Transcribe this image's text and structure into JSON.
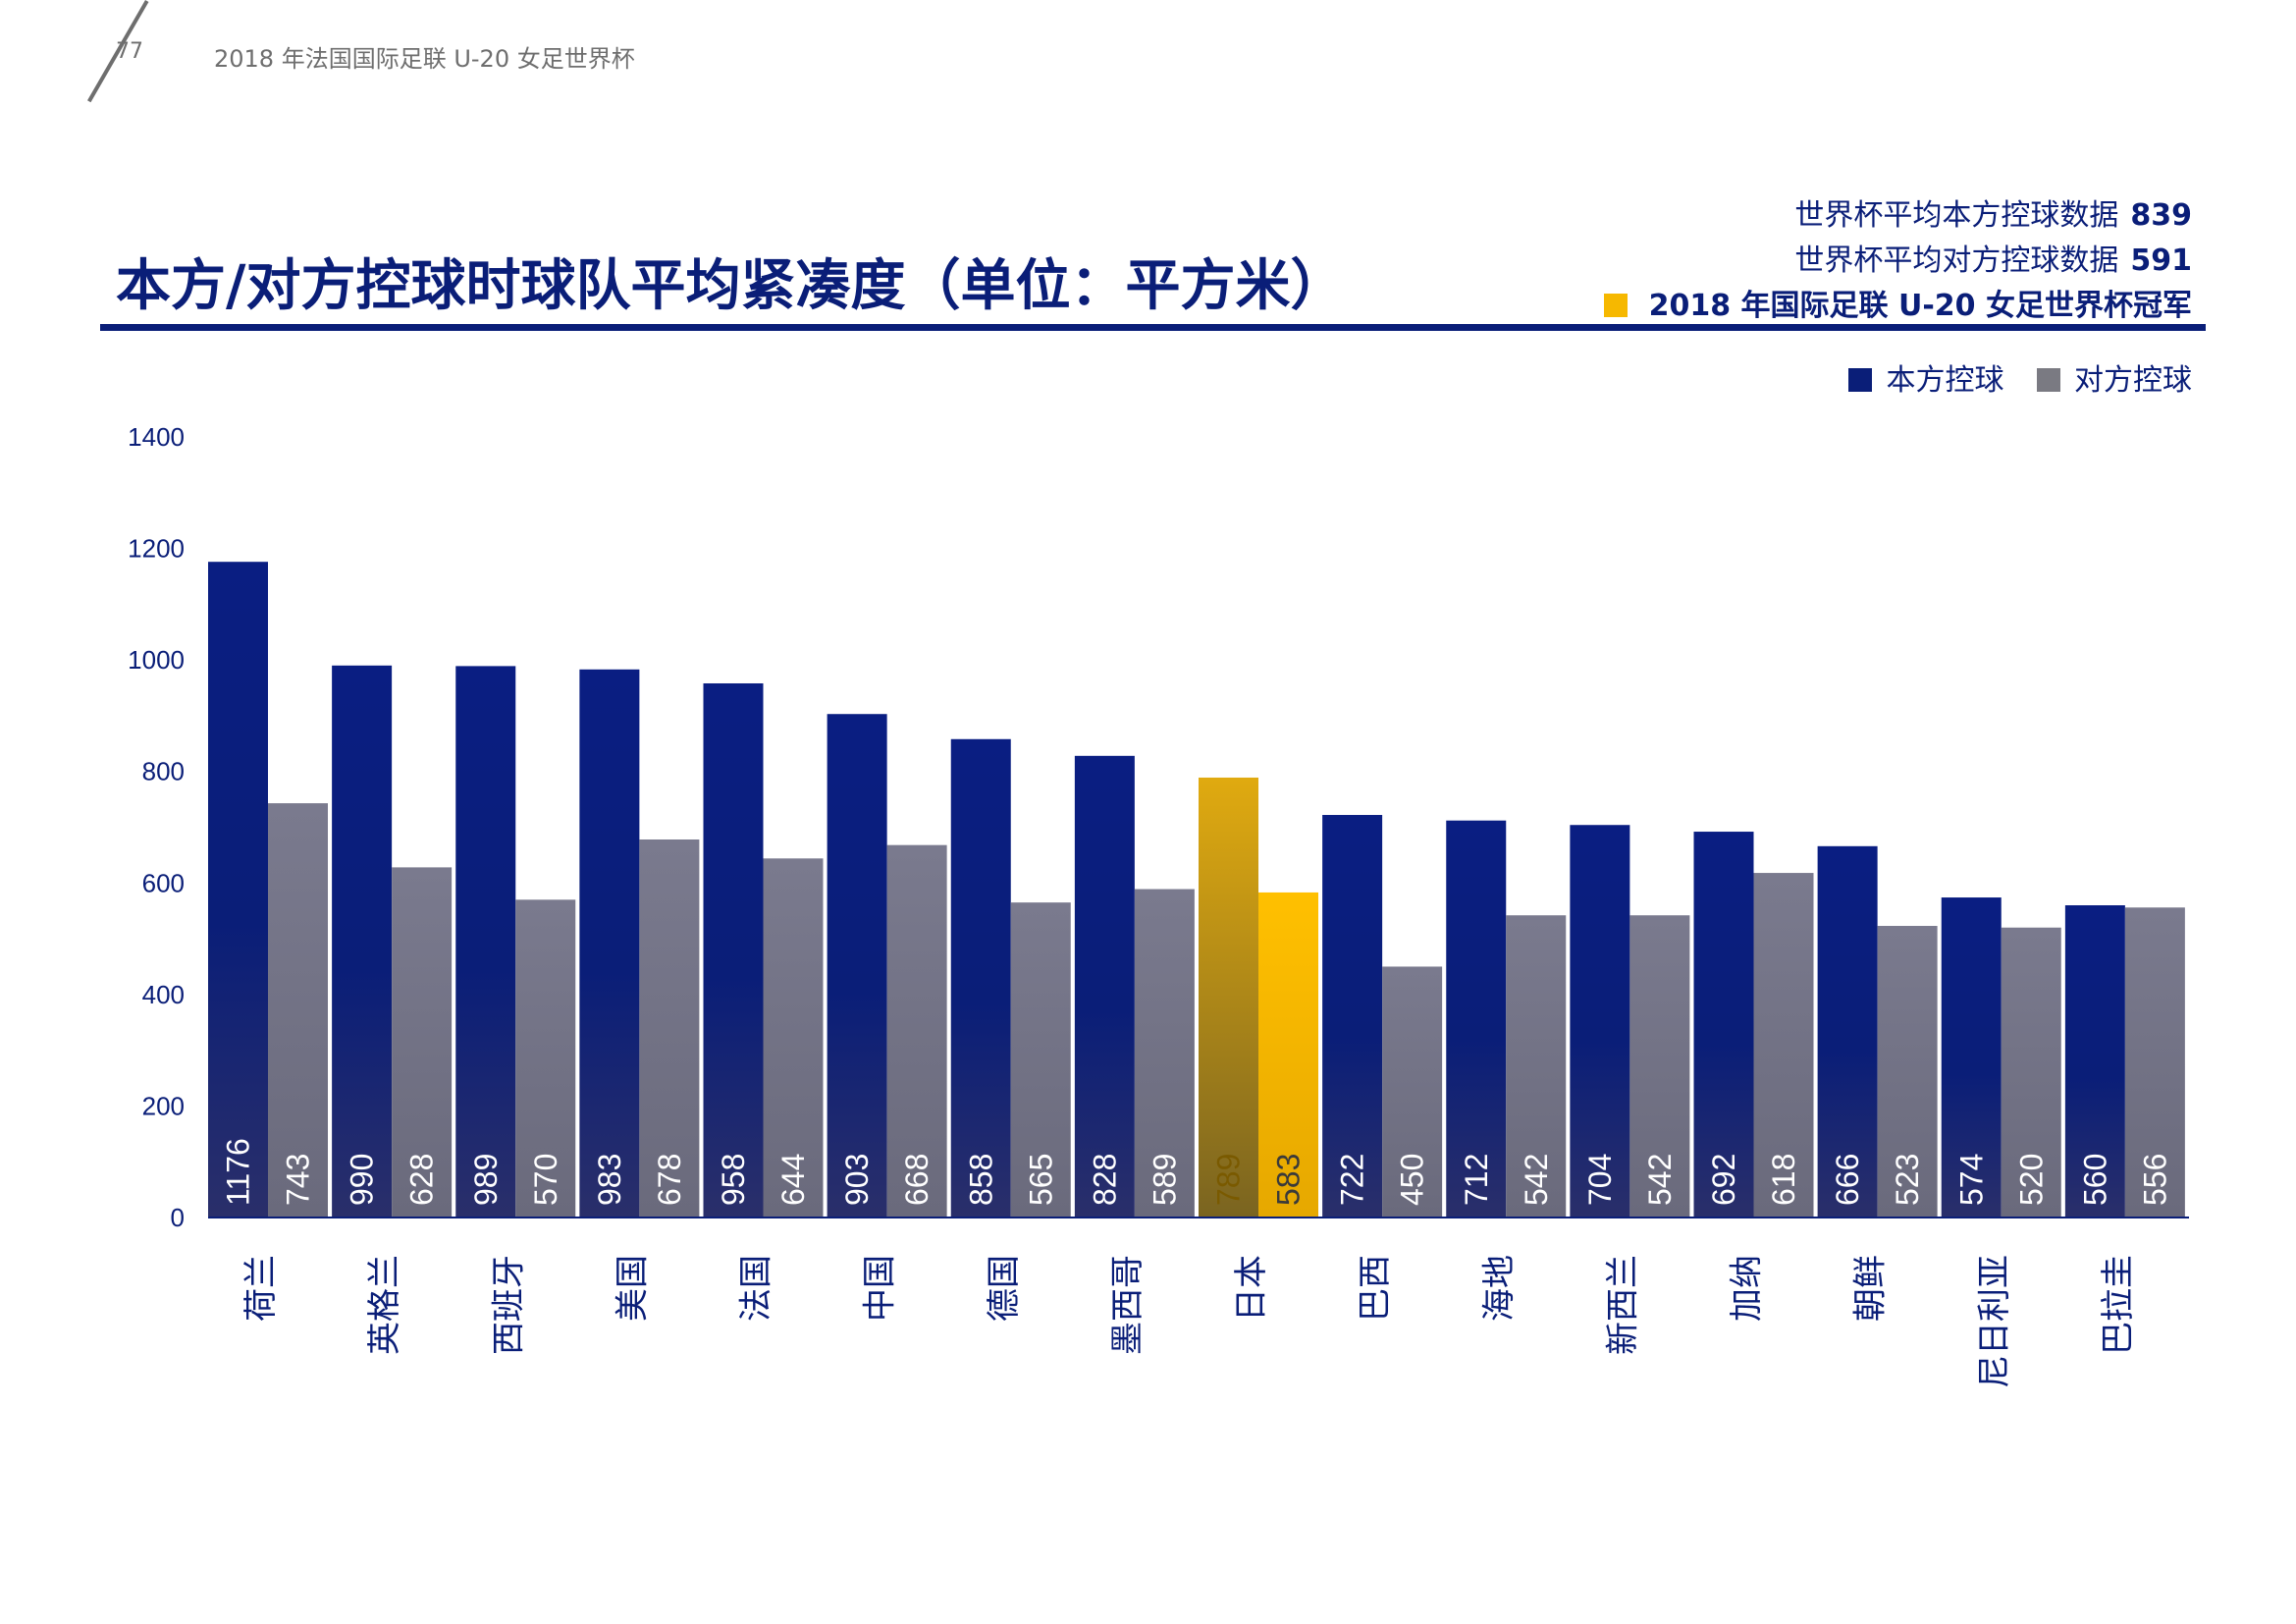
{
  "header": {
    "page_number": "77",
    "doc_title": "2018 年法国国际足联 U-20 女足世界杯"
  },
  "stats": {
    "home_label": "世界杯平均本方控球数据",
    "home_value": "839",
    "away_label": "世界杯平均对方控球数据",
    "away_value": "591",
    "champion_label": "2018 年国际足联 U-20 女足世界杯冠军"
  },
  "legend": {
    "home": "本方控球",
    "away": "对方控球"
  },
  "colors": {
    "home": "#0a1e78",
    "away": "#7a7a82",
    "champion_home": "#d9a400",
    "champion_away": "#f6b800",
    "axis": "#0a1e78"
  },
  "chart_data": {
    "type": "bar",
    "title": "本方/对方控球时球队平均紧凑度（单位：平方米）",
    "categories": [
      "荷兰",
      "英格兰",
      "西班牙",
      "美国",
      "法国",
      "中国",
      "德国",
      "墨西哥",
      "日本",
      "巴西",
      "海地",
      "新西兰",
      "加纳",
      "朝鲜",
      "尼日利亚",
      "巴拉圭"
    ],
    "series": [
      {
        "name": "本方控球",
        "values": [
          1176,
          990,
          989,
          983,
          958,
          903,
          858,
          828,
          789,
          722,
          712,
          704,
          692,
          666,
          574,
          560
        ]
      },
      {
        "name": "对方控球",
        "values": [
          743,
          628,
          570,
          678,
          644,
          668,
          565,
          589,
          583,
          450,
          542,
          542,
          618,
          523,
          520,
          556
        ]
      }
    ],
    "highlight_category": "日本",
    "yticks": [
      "0",
      "200",
      "400",
      "600",
      "800",
      "1000",
      "1200",
      "1400"
    ],
    "ylim": [
      0,
      1400
    ],
    "grid": false,
    "legend_position": "top-right"
  }
}
